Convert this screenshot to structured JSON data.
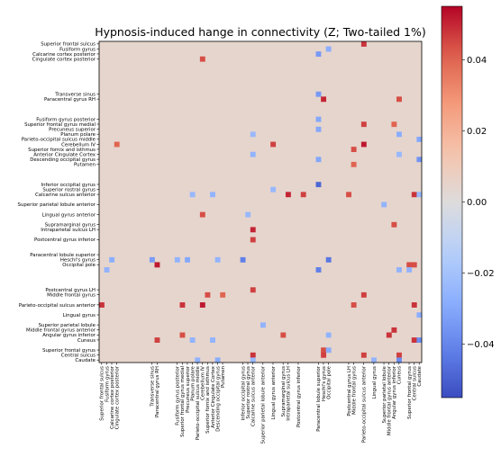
{
  "chart_data": {
    "type": "heatmap",
    "title": "Hypnosis-induced hange in connectivity (Z; Two-tailed 1%)",
    "colormap": "coolwarm",
    "value_range": [
      -0.055,
      0.055
    ],
    "background_value": 0.0,
    "colorbar": {
      "ticks": [
        0.04,
        0.02,
        0.0,
        -0.02,
        -0.04
      ],
      "labels": [
        "0.04",
        "0.02",
        "0.00",
        "−0.02",
        "−0.04"
      ]
    },
    "rows": 64,
    "cols": 64,
    "y_tick_labels": [
      {
        "row": 0,
        "label": "Superior frontal sulcus"
      },
      {
        "row": 1,
        "label": "Fusiform gyrus"
      },
      {
        "row": 2,
        "label": "Calcarine cortex posterior"
      },
      {
        "row": 3,
        "label": "Cingulate cortex posterior"
      },
      {
        "row": 10,
        "label": "Transverse sinus"
      },
      {
        "row": 11,
        "label": "Paracentral gyrus RH"
      },
      {
        "row": 15,
        "label": "Fusiform gyrus posterior"
      },
      {
        "row": 16,
        "label": "Superior frontal gyrus medial"
      },
      {
        "row": 17,
        "label": "Precuneus superior"
      },
      {
        "row": 18,
        "label": "Planum polare"
      },
      {
        "row": 19,
        "label": "Parieto-occipital sulcus middle"
      },
      {
        "row": 20,
        "label": "Cerebellum IV"
      },
      {
        "row": 21,
        "label": "Superior fornix and isthmus"
      },
      {
        "row": 22,
        "label": "Anterior Cingulate Cortex"
      },
      {
        "row": 23,
        "label": "Descending occipital gyrus"
      },
      {
        "row": 24,
        "label": "Putamen"
      },
      {
        "row": 28,
        "label": "Inferior occipital gyrus"
      },
      {
        "row": 29,
        "label": "Superior rostral gyrus"
      },
      {
        "row": 30,
        "label": "Calcarine sulcus anterior"
      },
      {
        "row": 32,
        "label": "Superior parietal lobule anterior"
      },
      {
        "row": 34,
        "label": "Lingual gyrus anterior"
      },
      {
        "row": 36,
        "label": "Supramarginal gyrus"
      },
      {
        "row": 37,
        "label": "Intraparietal sulcus LH"
      },
      {
        "row": 39,
        "label": "Postcentral gyrus inferior"
      },
      {
        "row": 42,
        "label": "Paracentral lobule superior"
      },
      {
        "row": 43,
        "label": "Heschl's gyrus"
      },
      {
        "row": 44,
        "label": "Occipital pole"
      },
      {
        "row": 49,
        "label": "Postcentral gyrus LH"
      },
      {
        "row": 50,
        "label": "Middle frontal gyrus"
      },
      {
        "row": 52,
        "label": "Parieto-occipital sulcus anterior"
      },
      {
        "row": 54,
        "label": "Lingual gyrus"
      },
      {
        "row": 56,
        "label": "Superior parietal lobule"
      },
      {
        "row": 57,
        "label": "Middle frontal gyrus anterior"
      },
      {
        "row": 58,
        "label": "Angular gyrus inferior"
      },
      {
        "row": 59,
        "label": "Cuneus"
      },
      {
        "row": 61,
        "label": "Superior frontal gyrus"
      },
      {
        "row": 62,
        "label": "Central sulcus"
      },
      {
        "row": 63,
        "label": "Caudate"
      }
    ],
    "x_tick_labels": [
      {
        "col": 0,
        "label": "Superior frontal sulcus"
      },
      {
        "col": 1,
        "label": "Fusiform gyrus"
      },
      {
        "col": 2,
        "label": "Calcarine cortex posterior"
      },
      {
        "col": 3,
        "label": "Cingulate cortex posterior"
      },
      {
        "col": 10,
        "label": "Transverse sinus"
      },
      {
        "col": 11,
        "label": "Paracentral gyrus RH"
      },
      {
        "col": 15,
        "label": "Fusiform gyrus posterior"
      },
      {
        "col": 16,
        "label": "Superior frontal gyrus medial"
      },
      {
        "col": 17,
        "label": "Precuneus superior"
      },
      {
        "col": 18,
        "label": "Planum polare"
      },
      {
        "col": 19,
        "label": "Parieto-occipital sulcus middle"
      },
      {
        "col": 20,
        "label": "Cerebellum IV"
      },
      {
        "col": 21,
        "label": "Superior fornix and isthmus"
      },
      {
        "col": 22,
        "label": "Anterior Cingulate Cortex"
      },
      {
        "col": 23,
        "label": "Descending occipital gyrus"
      },
      {
        "col": 24,
        "label": "Putamen"
      },
      {
        "col": 28,
        "label": "Inferior occipital gyrus"
      },
      {
        "col": 29,
        "label": "Superior rostral gyrus"
      },
      {
        "col": 30,
        "label": "Calcarine sulcus anterior"
      },
      {
        "col": 32,
        "label": "Superior parietal lobule anterior"
      },
      {
        "col": 34,
        "label": "Lingual gyrus anterior"
      },
      {
        "col": 36,
        "label": "Supramarginal gyrus"
      },
      {
        "col": 37,
        "label": "Intraparietal sulcus LH"
      },
      {
        "col": 39,
        "label": "Postcentral gyrus inferior"
      },
      {
        "col": 43,
        "label": "Paracentral lobule superior"
      },
      {
        "col": 44,
        "label": "Heschl's gyrus"
      },
      {
        "col": 45,
        "label": "Occipital pole"
      },
      {
        "col": 49,
        "label": "Postcentral gyrus LH"
      },
      {
        "col": 50,
        "label": "Middle frontal gyrus"
      },
      {
        "col": 52,
        "label": "Parieto-occipital sulcus anterior"
      },
      {
        "col": 54,
        "label": "Lingual gyrus"
      },
      {
        "col": 56,
        "label": "Superior parietal lobule"
      },
      {
        "col": 57,
        "label": "Middle frontal gyrus anterior"
      },
      {
        "col": 58,
        "label": "Angular gyrus inferior"
      },
      {
        "col": 59,
        "label": "Cuneus"
      },
      {
        "col": 61,
        "label": "Superior frontal gyrus"
      },
      {
        "col": 62,
        "label": "Central sulcus"
      },
      {
        "col": 63,
        "label": "Caudate"
      }
    ],
    "cells": [
      {
        "row": 0,
        "col": 52,
        "value": 0.048
      },
      {
        "row": 1,
        "col": 45,
        "value": -0.028
      },
      {
        "row": 2,
        "col": 43,
        "value": -0.034
      },
      {
        "row": 3,
        "col": 20,
        "value": 0.044
      },
      {
        "row": 10,
        "col": 43,
        "value": -0.034
      },
      {
        "row": 11,
        "col": 44,
        "value": 0.05
      },
      {
        "row": 11,
        "col": 59,
        "value": 0.044
      },
      {
        "row": 15,
        "col": 43,
        "value": -0.03
      },
      {
        "row": 16,
        "col": 52,
        "value": 0.046
      },
      {
        "row": 16,
        "col": 58,
        "value": 0.04
      },
      {
        "row": 17,
        "col": 43,
        "value": -0.03
      },
      {
        "row": 18,
        "col": 30,
        "value": -0.024
      },
      {
        "row": 18,
        "col": 59,
        "value": -0.028
      },
      {
        "row": 19,
        "col": 63,
        "value": -0.03
      },
      {
        "row": 20,
        "col": 3,
        "value": 0.04
      },
      {
        "row": 20,
        "col": 34,
        "value": 0.046
      },
      {
        "row": 20,
        "col": 52,
        "value": 0.052
      },
      {
        "row": 21,
        "col": 50,
        "value": 0.044
      },
      {
        "row": 22,
        "col": 30,
        "value": -0.026
      },
      {
        "row": 22,
        "col": 59,
        "value": -0.024
      },
      {
        "row": 23,
        "col": 43,
        "value": -0.03
      },
      {
        "row": 23,
        "col": 63,
        "value": -0.036
      },
      {
        "row": 24,
        "col": 50,
        "value": 0.04
      },
      {
        "row": 28,
        "col": 43,
        "value": -0.048
      },
      {
        "row": 29,
        "col": 34,
        "value": -0.024
      },
      {
        "row": 30,
        "col": 18,
        "value": -0.024
      },
      {
        "row": 30,
        "col": 22,
        "value": -0.026
      },
      {
        "row": 30,
        "col": 37,
        "value": 0.05
      },
      {
        "row": 30,
        "col": 40,
        "value": 0.046
      },
      {
        "row": 30,
        "col": 49,
        "value": 0.044
      },
      {
        "row": 30,
        "col": 62,
        "value": 0.048
      },
      {
        "row": 30,
        "col": 63,
        "value": -0.024
      },
      {
        "row": 32,
        "col": 56,
        "value": -0.026
      },
      {
        "row": 34,
        "col": 20,
        "value": 0.044
      },
      {
        "row": 34,
        "col": 29,
        "value": -0.024
      },
      {
        "row": 36,
        "col": 58,
        "value": 0.044
      },
      {
        "row": 37,
        "col": 30,
        "value": 0.05
      },
      {
        "row": 39,
        "col": 30,
        "value": 0.046
      },
      {
        "row": 43,
        "col": 2,
        "value": -0.028
      },
      {
        "row": 43,
        "col": 10,
        "value": -0.034
      },
      {
        "row": 43,
        "col": 15,
        "value": -0.026
      },
      {
        "row": 43,
        "col": 17,
        "value": -0.03
      },
      {
        "row": 43,
        "col": 23,
        "value": -0.026
      },
      {
        "row": 43,
        "col": 28,
        "value": -0.042
      },
      {
        "row": 43,
        "col": 45,
        "value": -0.044
      },
      {
        "row": 44,
        "col": 11,
        "value": 0.052
      },
      {
        "row": 44,
        "col": 61,
        "value": 0.044
      },
      {
        "row": 44,
        "col": 62,
        "value": 0.044
      },
      {
        "row": 45,
        "col": 1,
        "value": -0.026
      },
      {
        "row": 45,
        "col": 43,
        "value": -0.042
      },
      {
        "row": 45,
        "col": 59,
        "value": -0.026
      },
      {
        "row": 45,
        "col": 61,
        "value": -0.026
      },
      {
        "row": 49,
        "col": 30,
        "value": 0.046
      },
      {
        "row": 50,
        "col": 21,
        "value": 0.044
      },
      {
        "row": 50,
        "col": 24,
        "value": 0.04
      },
      {
        "row": 50,
        "col": 52,
        "value": 0.046
      },
      {
        "row": 52,
        "col": 0,
        "value": 0.048
      },
      {
        "row": 52,
        "col": 16,
        "value": 0.048
      },
      {
        "row": 52,
        "col": 20,
        "value": 0.052
      },
      {
        "row": 52,
        "col": 50,
        "value": 0.044
      },
      {
        "row": 52,
        "col": 62,
        "value": 0.048
      },
      {
        "row": 54,
        "col": 63,
        "value": -0.028
      },
      {
        "row": 56,
        "col": 32,
        "value": -0.026
      },
      {
        "row": 57,
        "col": 58,
        "value": 0.048
      },
      {
        "row": 58,
        "col": 16,
        "value": 0.044
      },
      {
        "row": 58,
        "col": 36,
        "value": 0.044
      },
      {
        "row": 58,
        "col": 45,
        "value": -0.026
      },
      {
        "row": 58,
        "col": 57,
        "value": 0.048
      },
      {
        "row": 59,
        "col": 11,
        "value": 0.046
      },
      {
        "row": 59,
        "col": 18,
        "value": -0.026
      },
      {
        "row": 59,
        "col": 22,
        "value": -0.026
      },
      {
        "row": 59,
        "col": 62,
        "value": 0.048
      },
      {
        "row": 59,
        "col": 63,
        "value": -0.038
      },
      {
        "row": 61,
        "col": 44,
        "value": 0.044
      },
      {
        "row": 61,
        "col": 45,
        "value": -0.028
      },
      {
        "row": 62,
        "col": 30,
        "value": 0.048
      },
      {
        "row": 62,
        "col": 44,
        "value": 0.046
      },
      {
        "row": 62,
        "col": 52,
        "value": 0.046
      },
      {
        "row": 62,
        "col": 59,
        "value": 0.046
      },
      {
        "row": 63,
        "col": 19,
        "value": -0.026
      },
      {
        "row": 63,
        "col": 23,
        "value": -0.028
      },
      {
        "row": 63,
        "col": 30,
        "value": -0.024
      },
      {
        "row": 63,
        "col": 54,
        "value": -0.026
      },
      {
        "row": 63,
        "col": 59,
        "value": -0.038
      }
    ]
  }
}
